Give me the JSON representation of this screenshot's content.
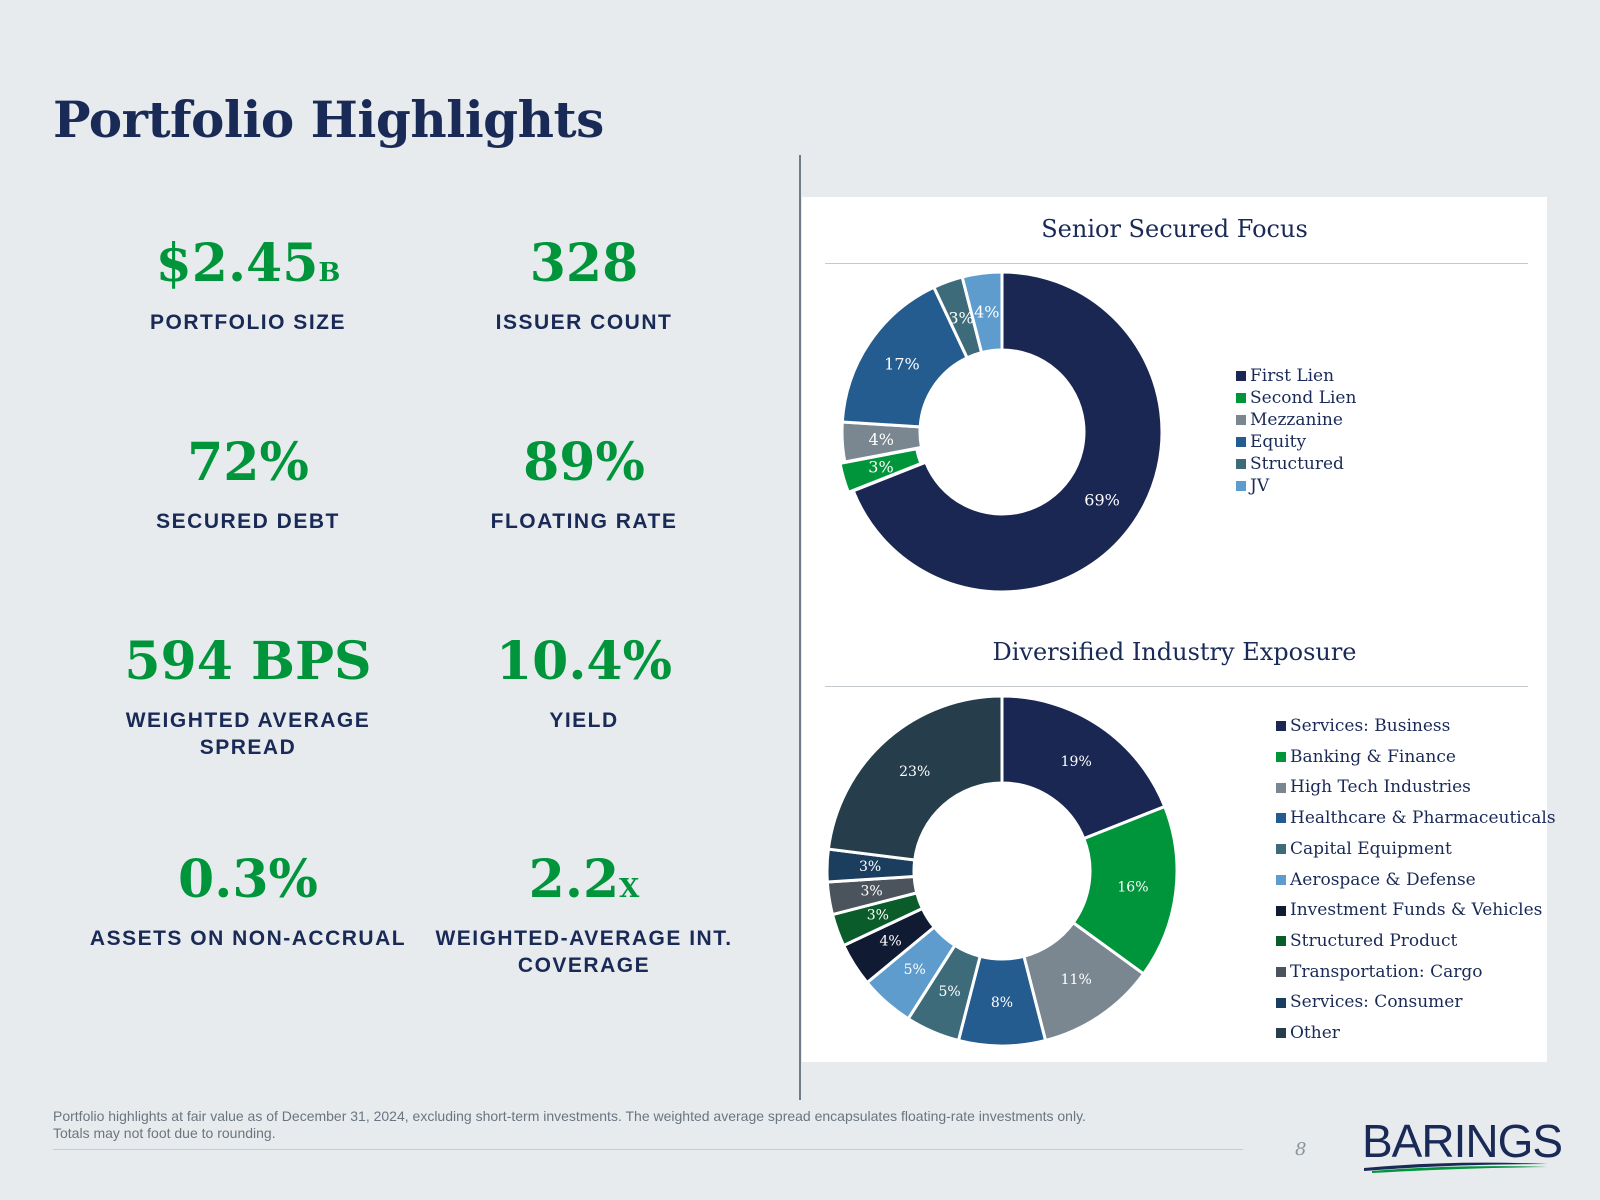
{
  "page": {
    "title": "Portfolio Highlights",
    "page_number": "8"
  },
  "metrics": [
    {
      "value": "$2.45",
      "suffix": "B",
      "label": "PORTFOLIO SIZE"
    },
    {
      "value": "328",
      "suffix": "",
      "label": "ISSUER COUNT"
    },
    {
      "value": "72%",
      "suffix": "",
      "label": "SECURED DEBT"
    },
    {
      "value": "89%",
      "suffix": "",
      "label": "FLOATING RATE"
    },
    {
      "value": "594 BPS",
      "suffix": "",
      "label": "WEIGHTED AVERAGE SPREAD"
    },
    {
      "value": "10.4%",
      "suffix": "",
      "label": "YIELD"
    },
    {
      "value": "0.3%",
      "suffix": "",
      "label": "ASSETS ON NON-ACCRUAL"
    },
    {
      "value": "2.2",
      "suffix": "X",
      "label": "WEIGHTED-AVERAGE INT. COVERAGE"
    }
  ],
  "chart_data": [
    {
      "type": "pie",
      "title": "Senior Secured Focus",
      "categories": [
        "First Lien",
        "Second Lien",
        "Mezzanine",
        "Equity",
        "Structured",
        "JV"
      ],
      "values": [
        69,
        3,
        4,
        17,
        3,
        4
      ],
      "labels": [
        "69%",
        "3%",
        "4%",
        "17%",
        "3%",
        "4%"
      ],
      "colors": [
        "#1a2752",
        "#00953b",
        "#7a8791",
        "#245c8f",
        "#3e6b7a",
        "#5e9ccd"
      ],
      "label_colors": [
        "#ffffff",
        "#ffffff",
        "#ffffff",
        "#ffffff",
        "#ffffff",
        "#ffffff"
      ],
      "legend_position": "right"
    },
    {
      "type": "pie",
      "title": "Diversified Industry Exposure",
      "categories": [
        "Services: Business",
        "Banking & Finance",
        "High Tech Industries",
        "Healthcare & Pharmaceuticals",
        "Capital Equipment",
        "Aerospace & Defense",
        "Investment Funds & Vehicles",
        "Structured Product",
        "Transportation: Cargo",
        "Services: Consumer",
        "Other"
      ],
      "values": [
        19,
        16,
        11,
        8,
        5,
        5,
        4,
        3,
        3,
        3,
        23
      ],
      "labels": [
        "19%",
        "16%",
        "11%",
        "8%",
        "5%",
        "5%",
        "4%",
        "3%",
        "3%",
        "3%",
        "23%"
      ],
      "colors": [
        "#1a2752",
        "#00953b",
        "#7a8791",
        "#245c8f",
        "#3e6b7a",
        "#5e9ccd",
        "#101a33",
        "#0b5c2b",
        "#4b545c",
        "#1b3e5e",
        "#263e4b"
      ],
      "label_colors": [
        "#ffffff",
        "#ffffff",
        "#ffffff",
        "#ffffff",
        "#ffffff",
        "#ffffff",
        "#ffffff",
        "#ffffff",
        "#ffffff",
        "#ffffff",
        "#ffffff"
      ],
      "legend_position": "right"
    }
  ],
  "footer": {
    "note_line1": "Portfolio highlights at fair value as of December 31, 2024, excluding short-term investments. The weighted average spread encapsulates floating-rate investments only.",
    "note_line2": "Totals may not foot due to rounding."
  },
  "logo": {
    "text": "BARINGS",
    "color": "#1a2a57",
    "accent": "#00953b"
  }
}
